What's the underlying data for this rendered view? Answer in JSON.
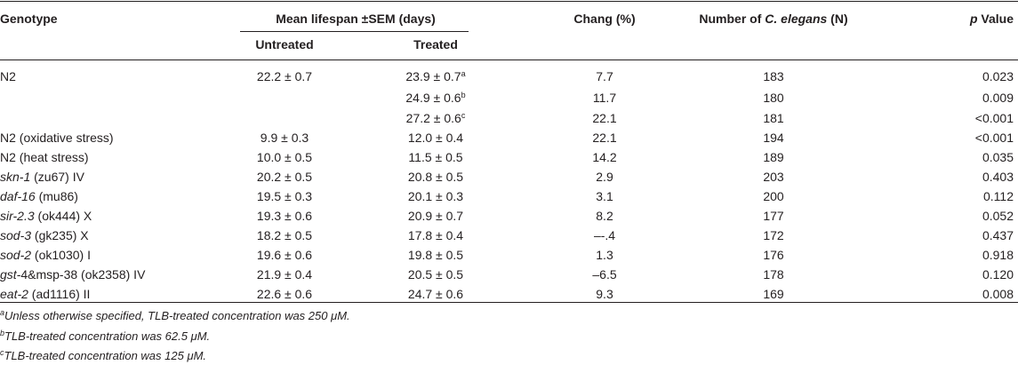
{
  "header": {
    "genotype": "Genotype",
    "mean_lifespan": "Mean lifespan ±SEM (days)",
    "untreated": "Untreated",
    "treated": "Treated",
    "change": "Chang (%)",
    "number_prefix": "Number of ",
    "number_species": "C. elegans",
    "number_suffix": " (N)",
    "p_italic": "p",
    "p_rest": " Value"
  },
  "rows": [
    {
      "gene": "",
      "genotype": "N2",
      "untreated": "22.2 ± 0.7",
      "treated": "23.9 ± 0.7",
      "sup": "a",
      "change": "7.7",
      "n": "183",
      "p": "0.023"
    },
    {
      "gene": "",
      "genotype": "",
      "untreated": "",
      "treated": "24.9 ± 0.6",
      "sup": "b",
      "change": "11.7",
      "n": "180",
      "p": "0.009"
    },
    {
      "gene": "",
      "genotype": "",
      "untreated": "",
      "treated": "27.2 ± 0.6",
      "sup": "c",
      "change": "22.1",
      "n": "181",
      "p": "<0.001"
    },
    {
      "gene": "",
      "genotype": "N2 (oxidative stress)",
      "untreated": "9.9 ± 0.3",
      "treated": "12.0 ± 0.4",
      "sup": "",
      "change": "22.1",
      "n": "194",
      "p": "<0.001"
    },
    {
      "gene": "",
      "genotype": "N2 (heat stress)",
      "untreated": "10.0 ± 0.5",
      "treated": "11.5 ± 0.5",
      "sup": "",
      "change": "14.2",
      "n": "189",
      "p": "0.035"
    },
    {
      "gene": "skn-1",
      "genotype": " (zu67) IV",
      "untreated": "20.2 ± 0.5",
      "treated": "20.8 ± 0.5",
      "sup": "",
      "change": "2.9",
      "n": "203",
      "p": "0.403"
    },
    {
      "gene": "daf-16",
      "genotype": " (mu86)",
      "untreated": "19.5 ± 0.3",
      "treated": "20.1 ± 0.3",
      "sup": "",
      "change": "3.1",
      "n": "200",
      "p": "0.112"
    },
    {
      "gene": "sir-2.3",
      "genotype": " (ok444) X",
      "untreated": "19.3 ± 0.6",
      "treated": "20.9 ± 0.7",
      "sup": "",
      "change": "8.2",
      "n": "177",
      "p": "0.052"
    },
    {
      "gene": "sod-3",
      "genotype": " (gk235) X",
      "untreated": "18.2 ± 0.5",
      "treated": "17.8 ± 0.4",
      "sup": "",
      "change": "–-.4",
      "n": "172",
      "p": "0.437"
    },
    {
      "gene": "sod-2",
      "genotype": " (ok1030) I",
      "untreated": "19.6 ± 0.6",
      "treated": "19.8 ± 0.5",
      "sup": "",
      "change": "1.3",
      "n": "176",
      "p": "0.918"
    },
    {
      "gene": "gst-",
      "genotype": "4&msp-38 (ok2358) IV",
      "untreated": "21.9 ± 0.4",
      "treated": "20.5 ± 0.5",
      "sup": "",
      "change": "–6.5",
      "n": "178",
      "p": "0.120"
    },
    {
      "gene": "eat-2",
      "genotype": " (ad1116) II",
      "untreated": "22.6 ± 0.6",
      "treated": "24.7 ± 0.6",
      "sup": "",
      "change": "9.3",
      "n": "169",
      "p": "0.008"
    }
  ],
  "footnotes": [
    {
      "mark": "a",
      "text": "Unless otherwise specified, TLB-treated concentration was 250 μM."
    },
    {
      "mark": "b",
      "text": "TLB-treated concentration was 62.5 μM."
    },
    {
      "mark": "c",
      "text": "TLB-treated concentration was 125 μM."
    }
  ]
}
